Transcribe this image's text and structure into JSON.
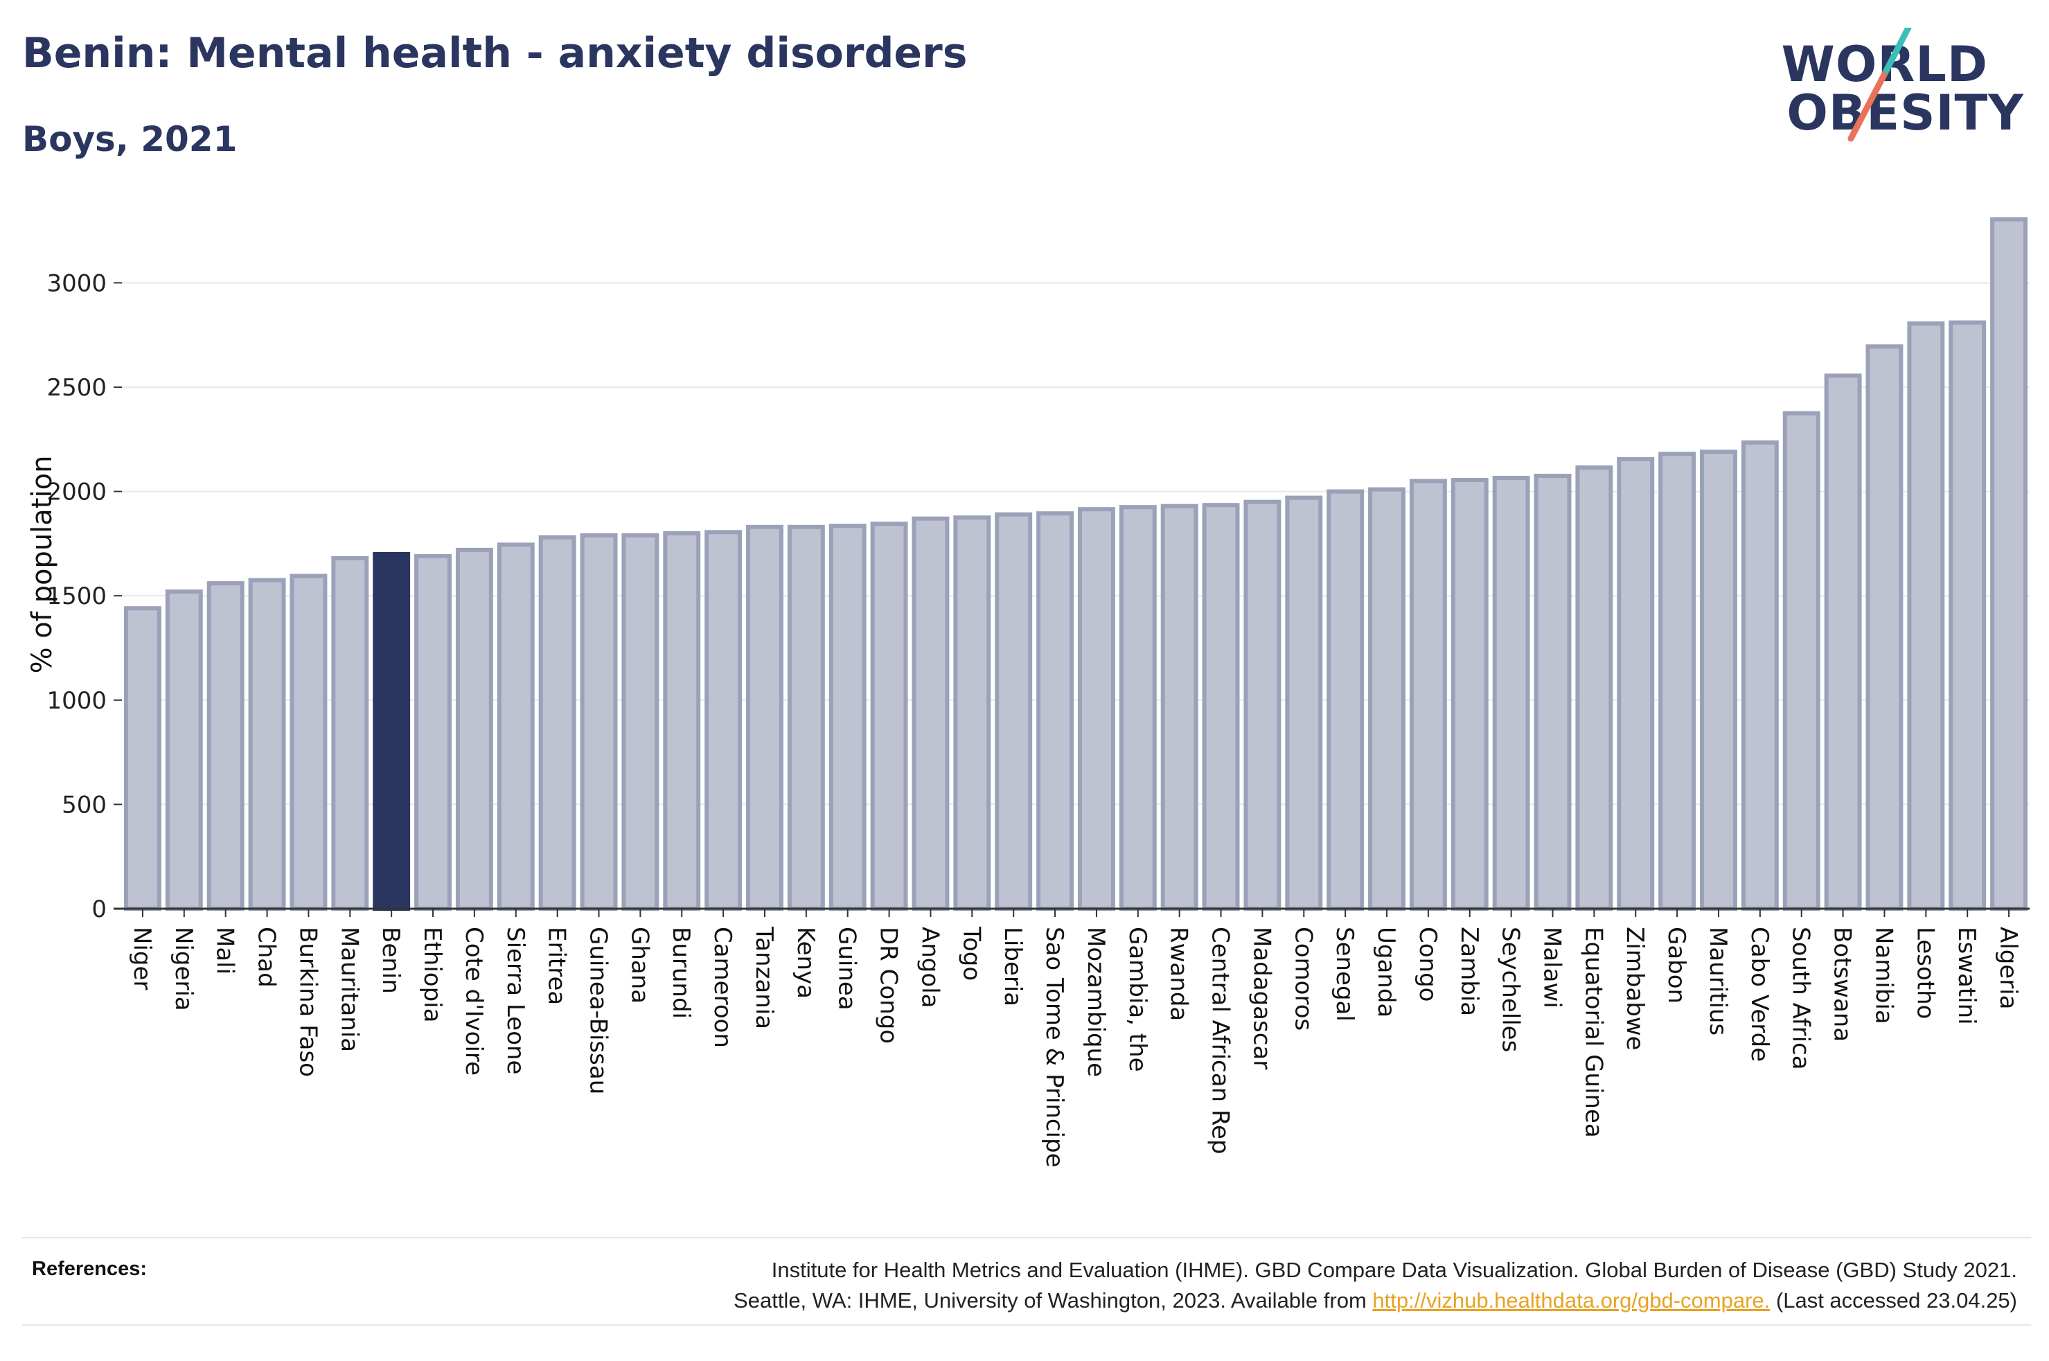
{
  "header": {
    "title": "Benin: Mental health - anxiety disorders",
    "subtitle": "Boys, 2021"
  },
  "logo": {
    "line1": "WORLD",
    "line2": "OBESITY",
    "accent_teal": "#3bbfb8",
    "accent_coral": "#e8735a"
  },
  "colors": {
    "bar_fill": "#bec2d1",
    "bar_stroke": "#9aa1b8",
    "highlight": "#2b3660",
    "text": "#2b3660"
  },
  "chart_data": {
    "type": "bar",
    "ylabel": "% of population",
    "ylim": [
      0,
      3300
    ],
    "yticks": [
      0,
      500,
      1000,
      1500,
      2000,
      2500,
      3000
    ],
    "grid": true,
    "highlight": "Benin",
    "categories": [
      "Niger",
      "Nigeria",
      "Mali",
      "Chad",
      "Burkina Faso",
      "Mauritania",
      "Benin",
      "Ethiopia",
      "Cote d'Ivoire",
      "Sierra Leone",
      "Eritrea",
      "Guinea-Bissau",
      "Ghana",
      "Burundi",
      "Cameroon",
      "Tanzania",
      "Kenya",
      "Guinea",
      "DR Congo",
      "Angola",
      "Togo",
      "Liberia",
      "Sao Tome & Principe",
      "Mozambique",
      "Gambia, the",
      "Rwanda",
      "Central African Rep",
      "Madagascar",
      "Comoros",
      "Senegal",
      "Uganda",
      "Congo",
      "Zambia",
      "Seychelles",
      "Malawi",
      "Equatorial Guinea",
      "Zimbabwe",
      "Gabon",
      "Mauritius",
      "Cabo Verde",
      "South Africa",
      "Botswana",
      "Namibia",
      "Lesotho",
      "Eswatini",
      "Algeria"
    ],
    "values": [
      1440,
      1520,
      1560,
      1575,
      1595,
      1680,
      1700,
      1690,
      1720,
      1745,
      1780,
      1790,
      1790,
      1800,
      1805,
      1830,
      1830,
      1835,
      1845,
      1870,
      1875,
      1890,
      1895,
      1915,
      1925,
      1930,
      1935,
      1950,
      1970,
      2000,
      2010,
      2050,
      2055,
      2065,
      2075,
      2115,
      2155,
      2180,
      2190,
      2235,
      2375,
      2555,
      2695,
      2805,
      2810,
      3305
    ]
  },
  "references": {
    "label": "References:",
    "line1": "Institute for Health Metrics and Evaluation (IHME). GBD Compare Data Visualization. Global Burden of Disease (GBD) Study 2021.",
    "line2_pre": "Seattle, WA: IHME, University of Washington, 2023. Available from ",
    "link": "http://vizhub.healthdata.org/gbd-compare.",
    "line2_post": " (Last accessed 23.04.25)"
  }
}
